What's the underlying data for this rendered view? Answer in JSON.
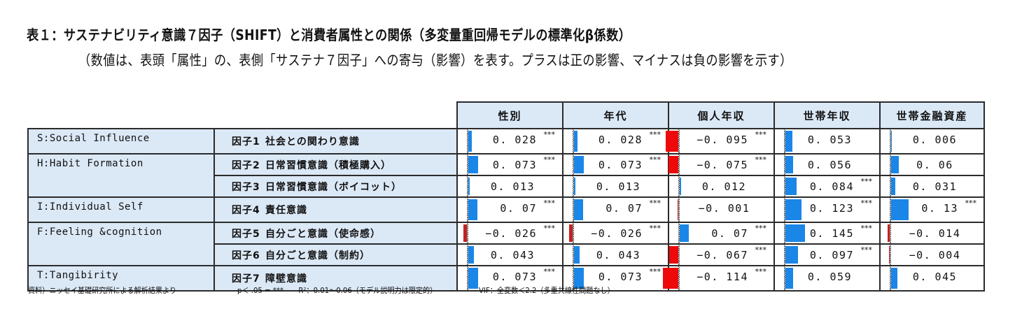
{
  "title": "表１：サステナビリティ意識７因子（SHIFT）と消費者属性との関係（多変量重回帰モデルの標準化β係数）",
  "subtitle": "（数値は、表頭「属性」の、表側「サステナ７因子」への寄与（影響）を表す。プラスは正の影響、マイナスは負の影響を示す）",
  "table": {
    "columns": [
      "性別",
      "年代",
      "個人年収",
      "世帯年収",
      "世帯金融資産"
    ],
    "groups": [
      {
        "category": "S:Social Influence",
        "rows": [
          0
        ]
      },
      {
        "category": "H:Habit Formation",
        "rows": [
          1,
          2
        ]
      },
      {
        "category": "I:Individual Self",
        "rows": [
          3
        ]
      },
      {
        "category": "F:Feeling &cognition",
        "rows": [
          4,
          5
        ]
      },
      {
        "category": "T:Tangibirity",
        "rows": [
          6
        ]
      }
    ],
    "rows": [
      {
        "factor_no": "因子1",
        "factor_name": "社会との関わり意識",
        "cells": [
          {
            "v": "0.028",
            "sig": "***"
          },
          {
            "v": "0.028",
            "sig": "***"
          },
          {
            "v": "-0.095",
            "sig": "***"
          },
          {
            "v": "0.053",
            "sig": ""
          },
          {
            "v": "0.006",
            "sig": ""
          }
        ]
      },
      {
        "factor_no": "因子2",
        "factor_name": "日常習慣意識（積極購入）",
        "cells": [
          {
            "v": "0.073",
            "sig": "***"
          },
          {
            "v": "0.073",
            "sig": "***"
          },
          {
            "v": "-0.075",
            "sig": "***"
          },
          {
            "v": "0.056",
            "sig": ""
          },
          {
            "v": "0.06",
            "sig": ""
          }
        ]
      },
      {
        "factor_no": "因子3",
        "factor_name": "日常習慣意識（ボイコット）",
        "cells": [
          {
            "v": "0.013",
            "sig": ""
          },
          {
            "v": "0.013",
            "sig": ""
          },
          {
            "v": "0.012",
            "sig": ""
          },
          {
            "v": "0.084",
            "sig": "***"
          },
          {
            "v": "0.031",
            "sig": ""
          }
        ]
      },
      {
        "factor_no": "因子4",
        "factor_name": "責任意識",
        "cells": [
          {
            "v": "0.07",
            "sig": "***"
          },
          {
            "v": "0.07",
            "sig": "***"
          },
          {
            "v": "-0.001",
            "sig": ""
          },
          {
            "v": "0.123",
            "sig": "***"
          },
          {
            "v": "0.13",
            "sig": "***"
          }
        ]
      },
      {
        "factor_no": "因子5",
        "factor_name": "自分ごと意識（使命感）",
        "cells": [
          {
            "v": "-0.026",
            "sig": "***"
          },
          {
            "v": "-0.026",
            "sig": "***"
          },
          {
            "v": "0.07",
            "sig": "***"
          },
          {
            "v": "0.145",
            "sig": "***"
          },
          {
            "v": "-0.014",
            "sig": ""
          }
        ]
      },
      {
        "factor_no": "因子6",
        "factor_name": "自分ごと意識（制約）",
        "cells": [
          {
            "v": "0.043",
            "sig": ""
          },
          {
            "v": "0.043",
            "sig": ""
          },
          {
            "v": "-0.067",
            "sig": "***"
          },
          {
            "v": "0.097",
            "sig": "***"
          },
          {
            "v": "-0.004",
            "sig": ""
          }
        ]
      },
      {
        "factor_no": "因子7",
        "factor_name": "障壁意識",
        "cells": [
          {
            "v": "0.073",
            "sig": "***"
          },
          {
            "v": "0.073",
            "sig": "***"
          },
          {
            "v": "-0.114",
            "sig": "***"
          },
          {
            "v": "0.059",
            "sig": ""
          },
          {
            "v": "0.045",
            "sig": ""
          }
        ]
      }
    ]
  },
  "footer": {
    "source": "資料）ニッセイ基礎研究所による解析結果より",
    "significance": "p＜ .05 = ***",
    "r2": "R²：0.01～0.06（モデル説明力は限定的）",
    "vif": "VIF：全変数＜2.2（多重共線性問題なし）"
  },
  "colors": {
    "header_bg": "#dbe8f6",
    "positive_bar": "#1a86e8",
    "negative_bar": "#ee0a0a",
    "border": "#2b2b2b"
  }
}
